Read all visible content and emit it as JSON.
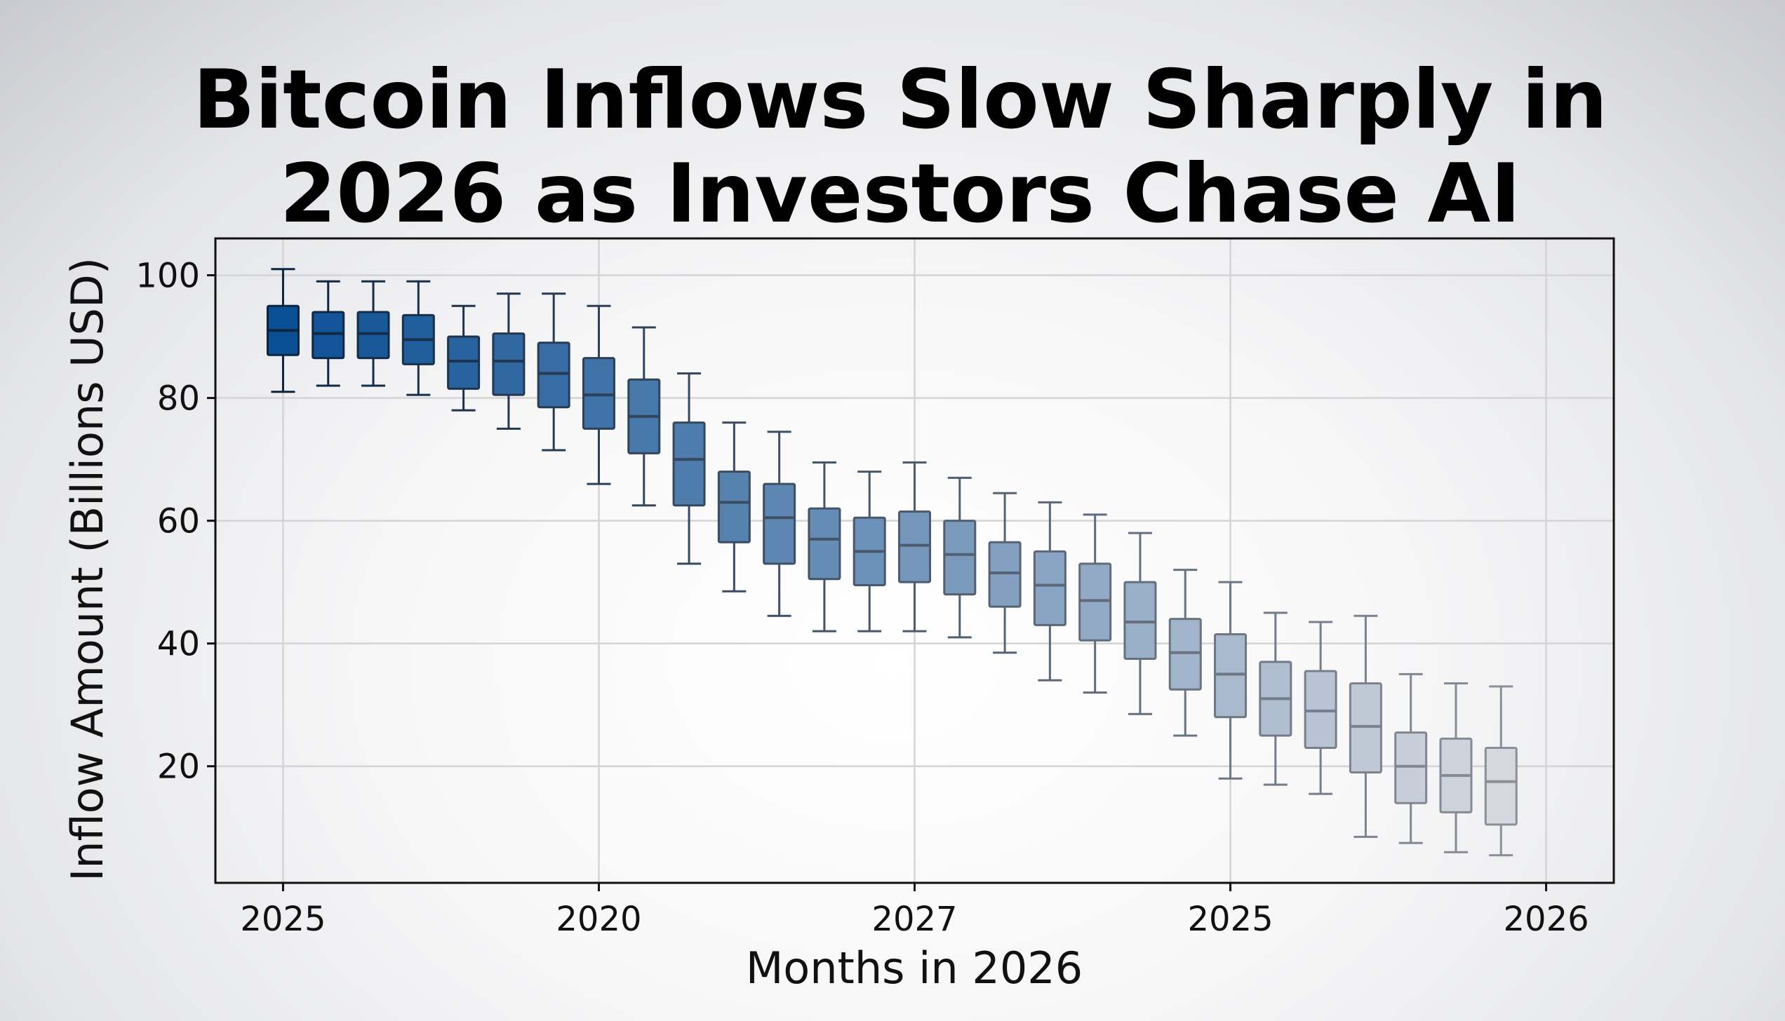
{
  "chart_data": {
    "type": "box",
    "title_lines": [
      "Bitcoin Inflows Slow Sharply in",
      "2026 as Investors Chase AI"
    ],
    "xlabel": "Months in 2026",
    "ylabel": "Inflow Amount (Billions USD)",
    "ylim": [
      1,
      106
    ],
    "yticks": [
      20,
      40,
      60,
      80,
      100
    ],
    "xticks": [
      {
        "position": 1,
        "label": "2025"
      },
      {
        "position": 8,
        "label": "2020"
      },
      {
        "position": 15,
        "label": "2027"
      },
      {
        "position": 22,
        "label": "2025"
      },
      {
        "position": 29,
        "label": "2026"
      }
    ],
    "xlim": [
      -0.5,
      30.5
    ],
    "grid": true,
    "color_start": "#0a4f94",
    "color_end": "#d6d8de",
    "edge_start": "#0b2440",
    "edge_end": "#8a8f99",
    "boxes": [
      {
        "position": 1,
        "whisker_low": 81,
        "q1": 87,
        "median": 91,
        "q3": 95,
        "whisker_high": 101
      },
      {
        "position": 2,
        "whisker_low": 82,
        "q1": 86.5,
        "median": 90.5,
        "q3": 94,
        "whisker_high": 99
      },
      {
        "position": 3,
        "whisker_low": 82,
        "q1": 86.5,
        "median": 90.5,
        "q3": 94,
        "whisker_high": 99
      },
      {
        "position": 4,
        "whisker_low": 80.5,
        "q1": 85.5,
        "median": 89.5,
        "q3": 93.5,
        "whisker_high": 99
      },
      {
        "position": 5,
        "whisker_low": 78,
        "q1": 81.5,
        "median": 86,
        "q3": 90,
        "whisker_high": 95
      },
      {
        "position": 6,
        "whisker_low": 75,
        "q1": 80.5,
        "median": 86,
        "q3": 90.5,
        "whisker_high": 97
      },
      {
        "position": 7,
        "whisker_low": 71.5,
        "q1": 78.5,
        "median": 84,
        "q3": 89,
        "whisker_high": 97
      },
      {
        "position": 8,
        "whisker_low": 66,
        "q1": 75,
        "median": 80.5,
        "q3": 86.5,
        "whisker_high": 95
      },
      {
        "position": 9,
        "whisker_low": 62.5,
        "q1": 71,
        "median": 77,
        "q3": 83,
        "whisker_high": 91.5
      },
      {
        "position": 10,
        "whisker_low": 53,
        "q1": 62.5,
        "median": 70,
        "q3": 76,
        "whisker_high": 84
      },
      {
        "position": 11,
        "whisker_low": 48.5,
        "q1": 56.5,
        "median": 63,
        "q3": 68,
        "whisker_high": 76
      },
      {
        "position": 12,
        "whisker_low": 44.5,
        "q1": 53,
        "median": 60.5,
        "q3": 66,
        "whisker_high": 74.5
      },
      {
        "position": 13,
        "whisker_low": 42,
        "q1": 50.5,
        "median": 57,
        "q3": 62,
        "whisker_high": 69.5
      },
      {
        "position": 14,
        "whisker_low": 42,
        "q1": 49.5,
        "median": 55,
        "q3": 60.5,
        "whisker_high": 68
      },
      {
        "position": 15,
        "whisker_low": 42,
        "q1": 50,
        "median": 56,
        "q3": 61.5,
        "whisker_high": 69.5
      },
      {
        "position": 16,
        "whisker_low": 41,
        "q1": 48,
        "median": 54.5,
        "q3": 60,
        "whisker_high": 67
      },
      {
        "position": 17,
        "whisker_low": 38.5,
        "q1": 46,
        "median": 51.5,
        "q3": 56.5,
        "whisker_high": 64.5
      },
      {
        "position": 18,
        "whisker_low": 34,
        "q1": 43,
        "median": 49.5,
        "q3": 55,
        "whisker_high": 63
      },
      {
        "position": 19,
        "whisker_low": 32,
        "q1": 40.5,
        "median": 47,
        "q3": 53,
        "whisker_high": 61
      },
      {
        "position": 20,
        "whisker_low": 28.5,
        "q1": 37.5,
        "median": 43.5,
        "q3": 50,
        "whisker_high": 58
      },
      {
        "position": 21,
        "whisker_low": 25,
        "q1": 32.5,
        "median": 38.5,
        "q3": 44,
        "whisker_high": 52
      },
      {
        "position": 22,
        "whisker_low": 18,
        "q1": 28,
        "median": 35,
        "q3": 41.5,
        "whisker_high": 50
      },
      {
        "position": 23,
        "whisker_low": 17,
        "q1": 25,
        "median": 31,
        "q3": 37,
        "whisker_high": 45
      },
      {
        "position": 24,
        "whisker_low": 15.5,
        "q1": 23,
        "median": 29,
        "q3": 35.5,
        "whisker_high": 43.5
      },
      {
        "position": 25,
        "whisker_low": 8.5,
        "q1": 19,
        "median": 26.5,
        "q3": 33.5,
        "whisker_high": 44.5
      },
      {
        "position": 26,
        "whisker_low": 7.5,
        "q1": 14,
        "median": 20,
        "q3": 25.5,
        "whisker_high": 35
      },
      {
        "position": 27,
        "whisker_low": 6,
        "q1": 12.5,
        "median": 18.5,
        "q3": 24.5,
        "whisker_high": 33.5
      },
      {
        "position": 28,
        "whisker_low": 5.5,
        "q1": 10.5,
        "median": 17.5,
        "q3": 23,
        "whisker_high": 33
      }
    ]
  }
}
